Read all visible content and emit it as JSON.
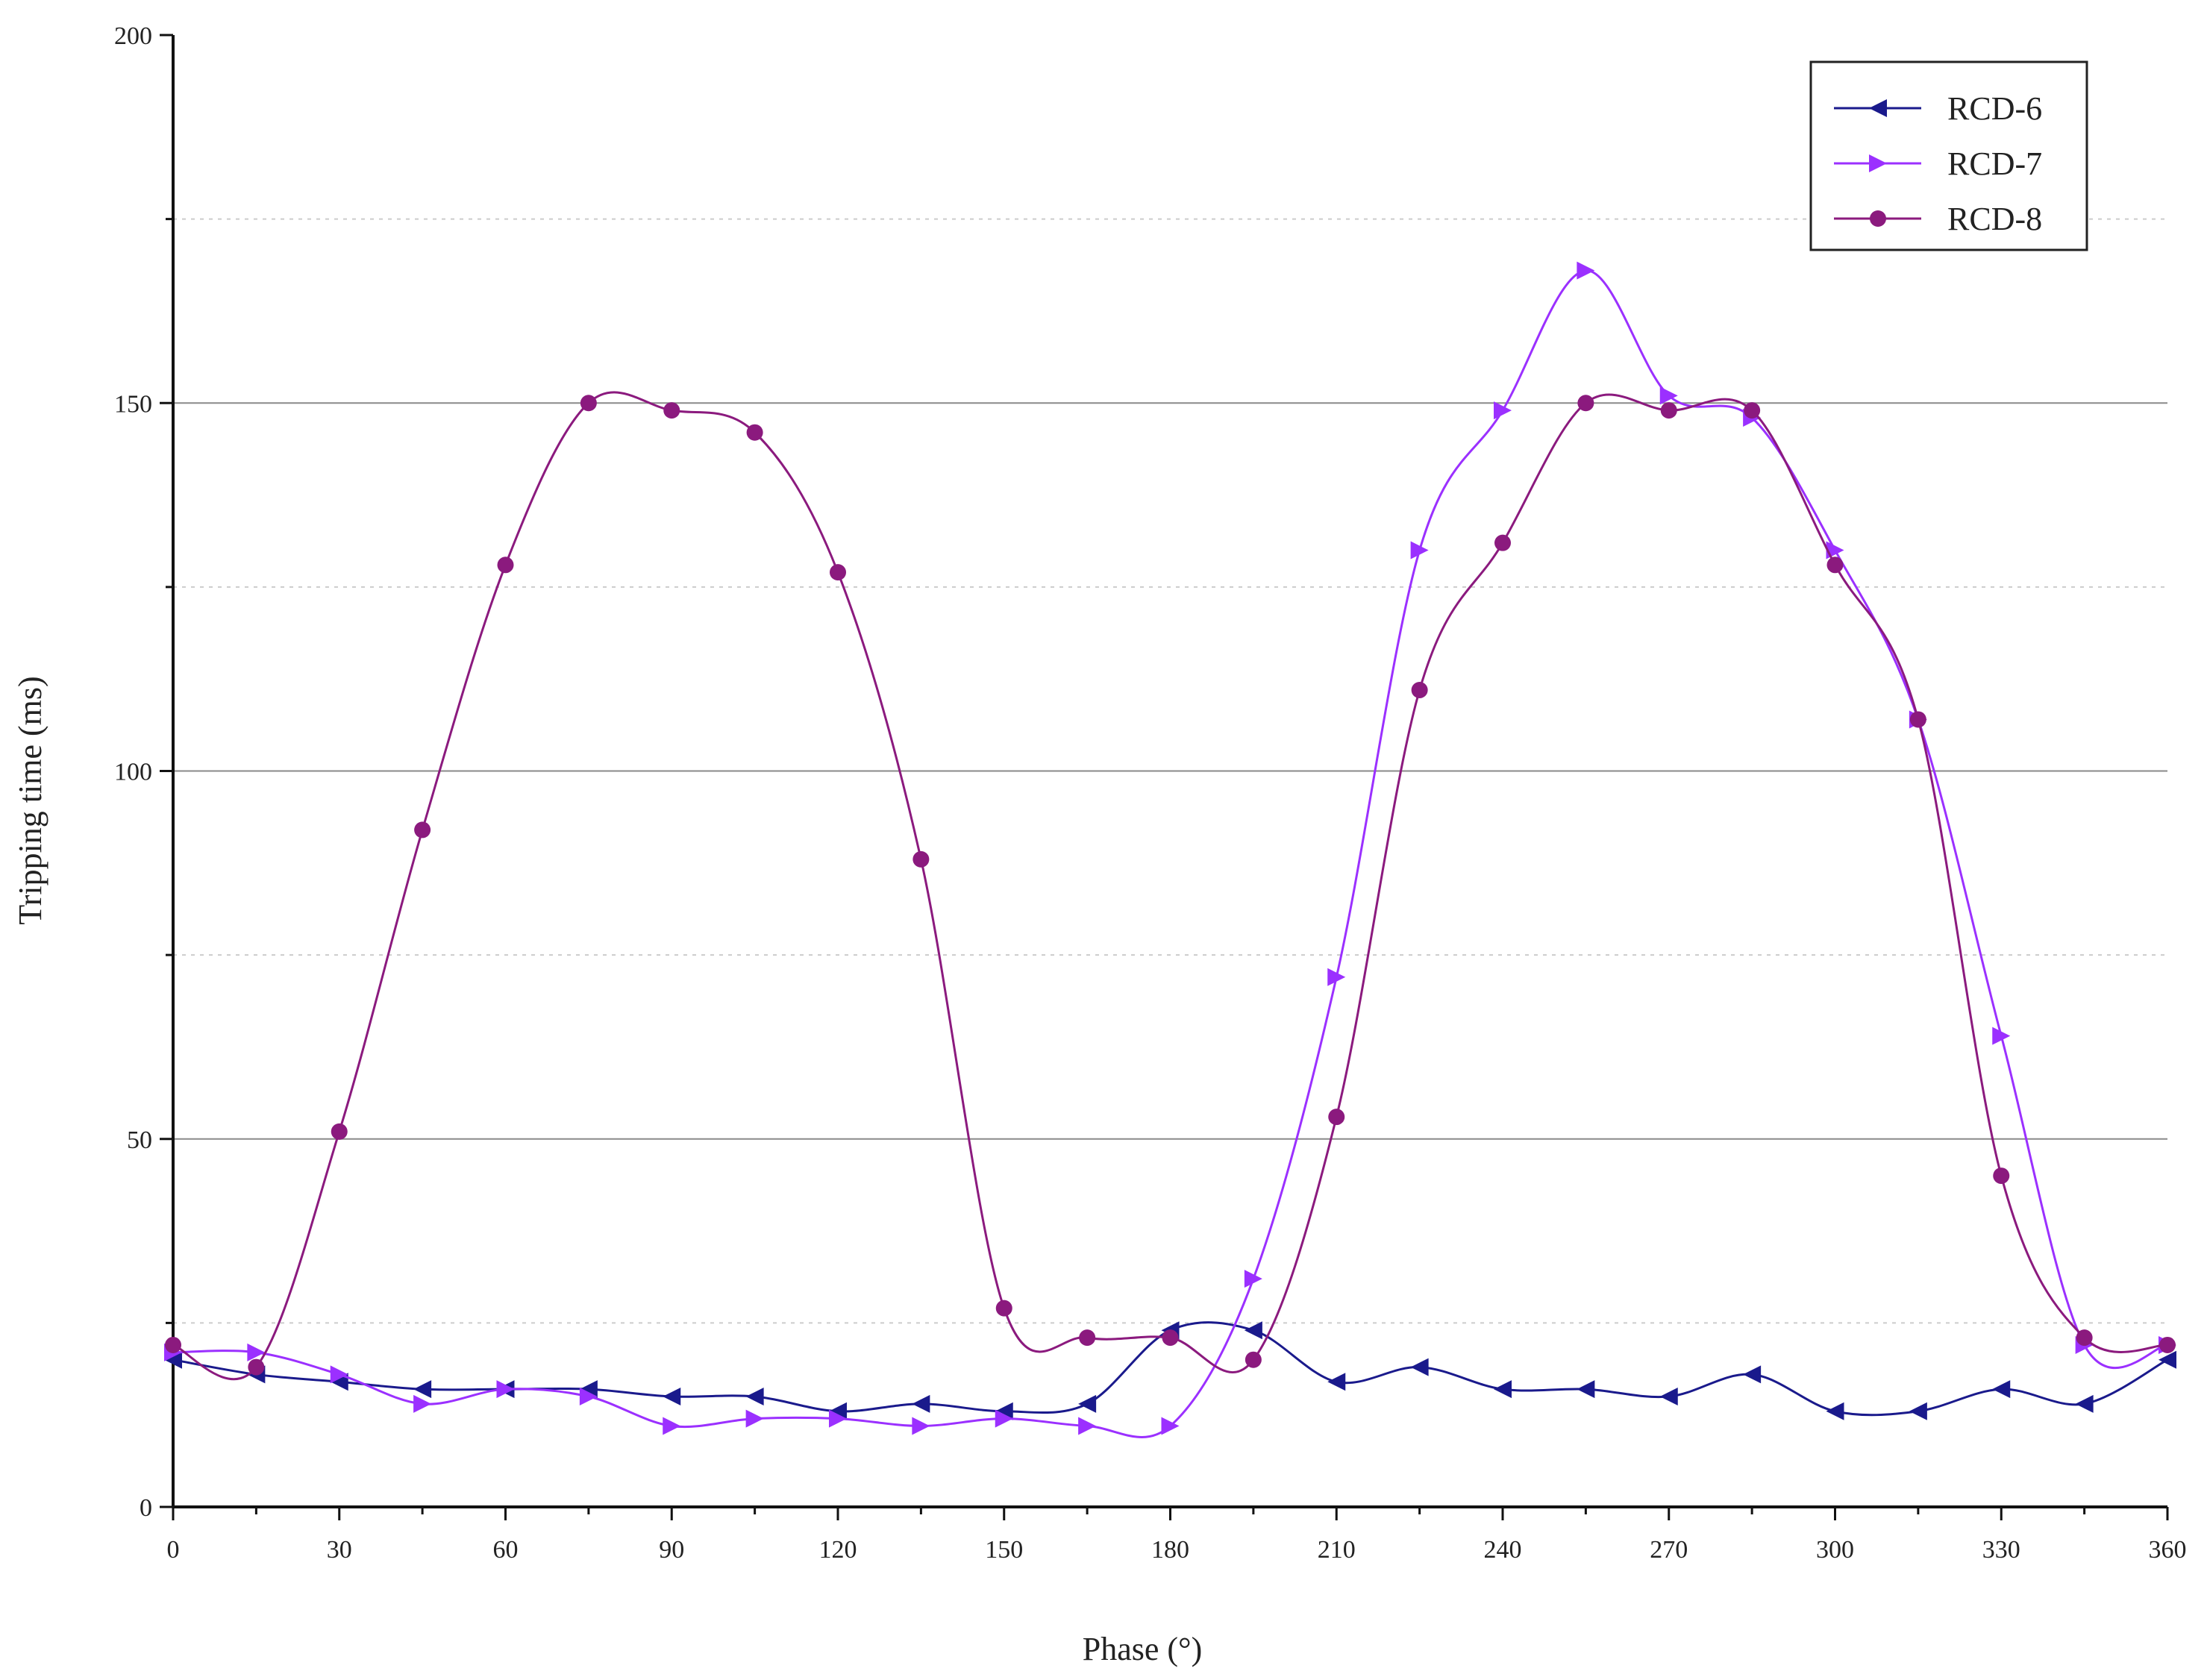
{
  "chart_data": {
    "type": "line",
    "xlabel": "Phase (°)",
    "ylabel": "Tripping time (ms)",
    "xlim": [
      0,
      360
    ],
    "ylim": [
      0,
      200
    ],
    "xticks": [
      "0",
      "30",
      "60",
      "90",
      "120",
      "150",
      "180",
      "210",
      "240",
      "270",
      "300",
      "330",
      "360"
    ],
    "yticks": [
      "0",
      "50",
      "100",
      "150",
      "200"
    ],
    "grid": "horizontal: solid at major ticks, dotted at minor ticks",
    "legend_position": "top-right",
    "x": [
      0,
      15,
      30,
      45,
      60,
      75,
      90,
      105,
      120,
      135,
      150,
      165,
      180,
      195,
      210,
      225,
      240,
      255,
      270,
      285,
      300,
      315,
      330,
      345,
      360
    ],
    "series": [
      {
        "name": "RCD-6",
        "color": "#1a1a8c",
        "marker": "triangle-left",
        "values": [
          20,
          18,
          17,
          16,
          16,
          16,
          15,
          15,
          13,
          14,
          13,
          14,
          24,
          24,
          17,
          19,
          16,
          16,
          15,
          18,
          13,
          13,
          16,
          14,
          20
        ]
      },
      {
        "name": "RCD-7",
        "color": "#9b30ff",
        "marker": "triangle-right",
        "values": [
          21,
          21,
          18,
          14,
          16,
          15,
          11,
          12,
          12,
          11,
          12,
          11,
          11,
          31,
          72,
          130,
          149,
          168,
          151,
          148,
          130,
          107,
          64,
          22,
          22
        ]
      },
      {
        "name": "RCD-8",
        "color": "#8b1a7e",
        "marker": "circle",
        "values": [
          22,
          19,
          51,
          92,
          128,
          150,
          149,
          146,
          127,
          88,
          27,
          23,
          23,
          20,
          53,
          111,
          131,
          150,
          149,
          149,
          128,
          107,
          45,
          23,
          22
        ]
      }
    ]
  }
}
